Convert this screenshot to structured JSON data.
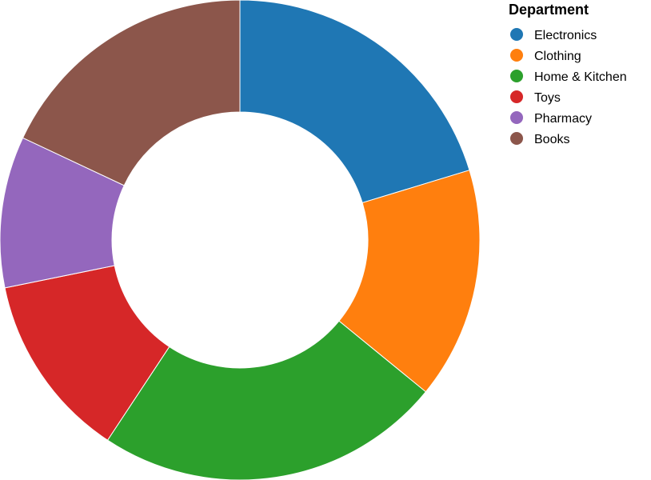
{
  "chart_data": {
    "type": "pie",
    "donut": true,
    "legend": {
      "title": "Department",
      "placement": "top-right"
    },
    "slices": [
      {
        "label": "Electronics",
        "value": 20.3,
        "color": "#1f77b4"
      },
      {
        "label": "Clothing",
        "value": 15.6,
        "color": "#ff7f0e"
      },
      {
        "label": "Home & Kitchen",
        "value": 23.4,
        "color": "#2ca02c"
      },
      {
        "label": "Toys",
        "value": 12.5,
        "color": "#d62728"
      },
      {
        "label": "Pharmacy",
        "value": 10.2,
        "color": "#9467bd"
      },
      {
        "label": "Books",
        "value": 18.0,
        "color": "#8c564b"
      }
    ]
  }
}
